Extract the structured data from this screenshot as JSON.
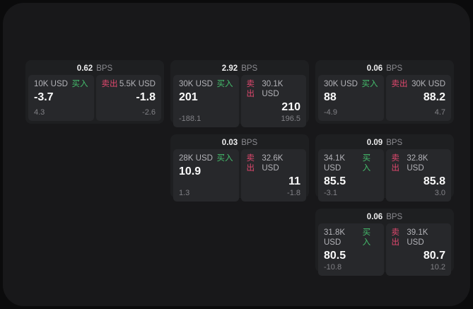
{
  "labels": {
    "bps": "BPS",
    "buy": "买入",
    "sell": "卖出"
  },
  "colors": {
    "buy": "#45bf6d",
    "sell": "#e0486e"
  },
  "cards": [
    {
      "bps": "0.62",
      "buy": {
        "amount": "10K USD",
        "value": "-3.7",
        "sub": "4.3"
      },
      "sell": {
        "amount": "5.5K USD",
        "value": "-1.8",
        "sub": "-2.6"
      }
    },
    {
      "bps": "2.92",
      "buy": {
        "amount": "30K USD",
        "value": "201",
        "sub": "-188.1"
      },
      "sell": {
        "amount": "30.1K USD",
        "value": "210",
        "sub": "196.5"
      }
    },
    {
      "bps": "0.06",
      "buy": {
        "amount": "30K USD",
        "value": "88",
        "sub": "-4.9"
      },
      "sell": {
        "amount": "30K USD",
        "value": "88.2",
        "sub": "4.7"
      }
    },
    {
      "bps": "0.03",
      "buy": {
        "amount": "28K USD",
        "value": "10.9",
        "sub": "1.3"
      },
      "sell": {
        "amount": "32.6K USD",
        "value": "11",
        "sub": "-1.8"
      }
    },
    {
      "bps": "0.09",
      "buy": {
        "amount": "34.1K USD",
        "value": "85.5",
        "sub": "-3.1"
      },
      "sell": {
        "amount": "32.8K USD",
        "value": "85.8",
        "sub": "3.0"
      }
    },
    {
      "bps": "0.06",
      "buy": {
        "amount": "31.8K USD",
        "value": "80.5",
        "sub": "-10.8"
      },
      "sell": {
        "amount": "39.1K USD",
        "value": "80.7",
        "sub": "10.2"
      }
    }
  ]
}
